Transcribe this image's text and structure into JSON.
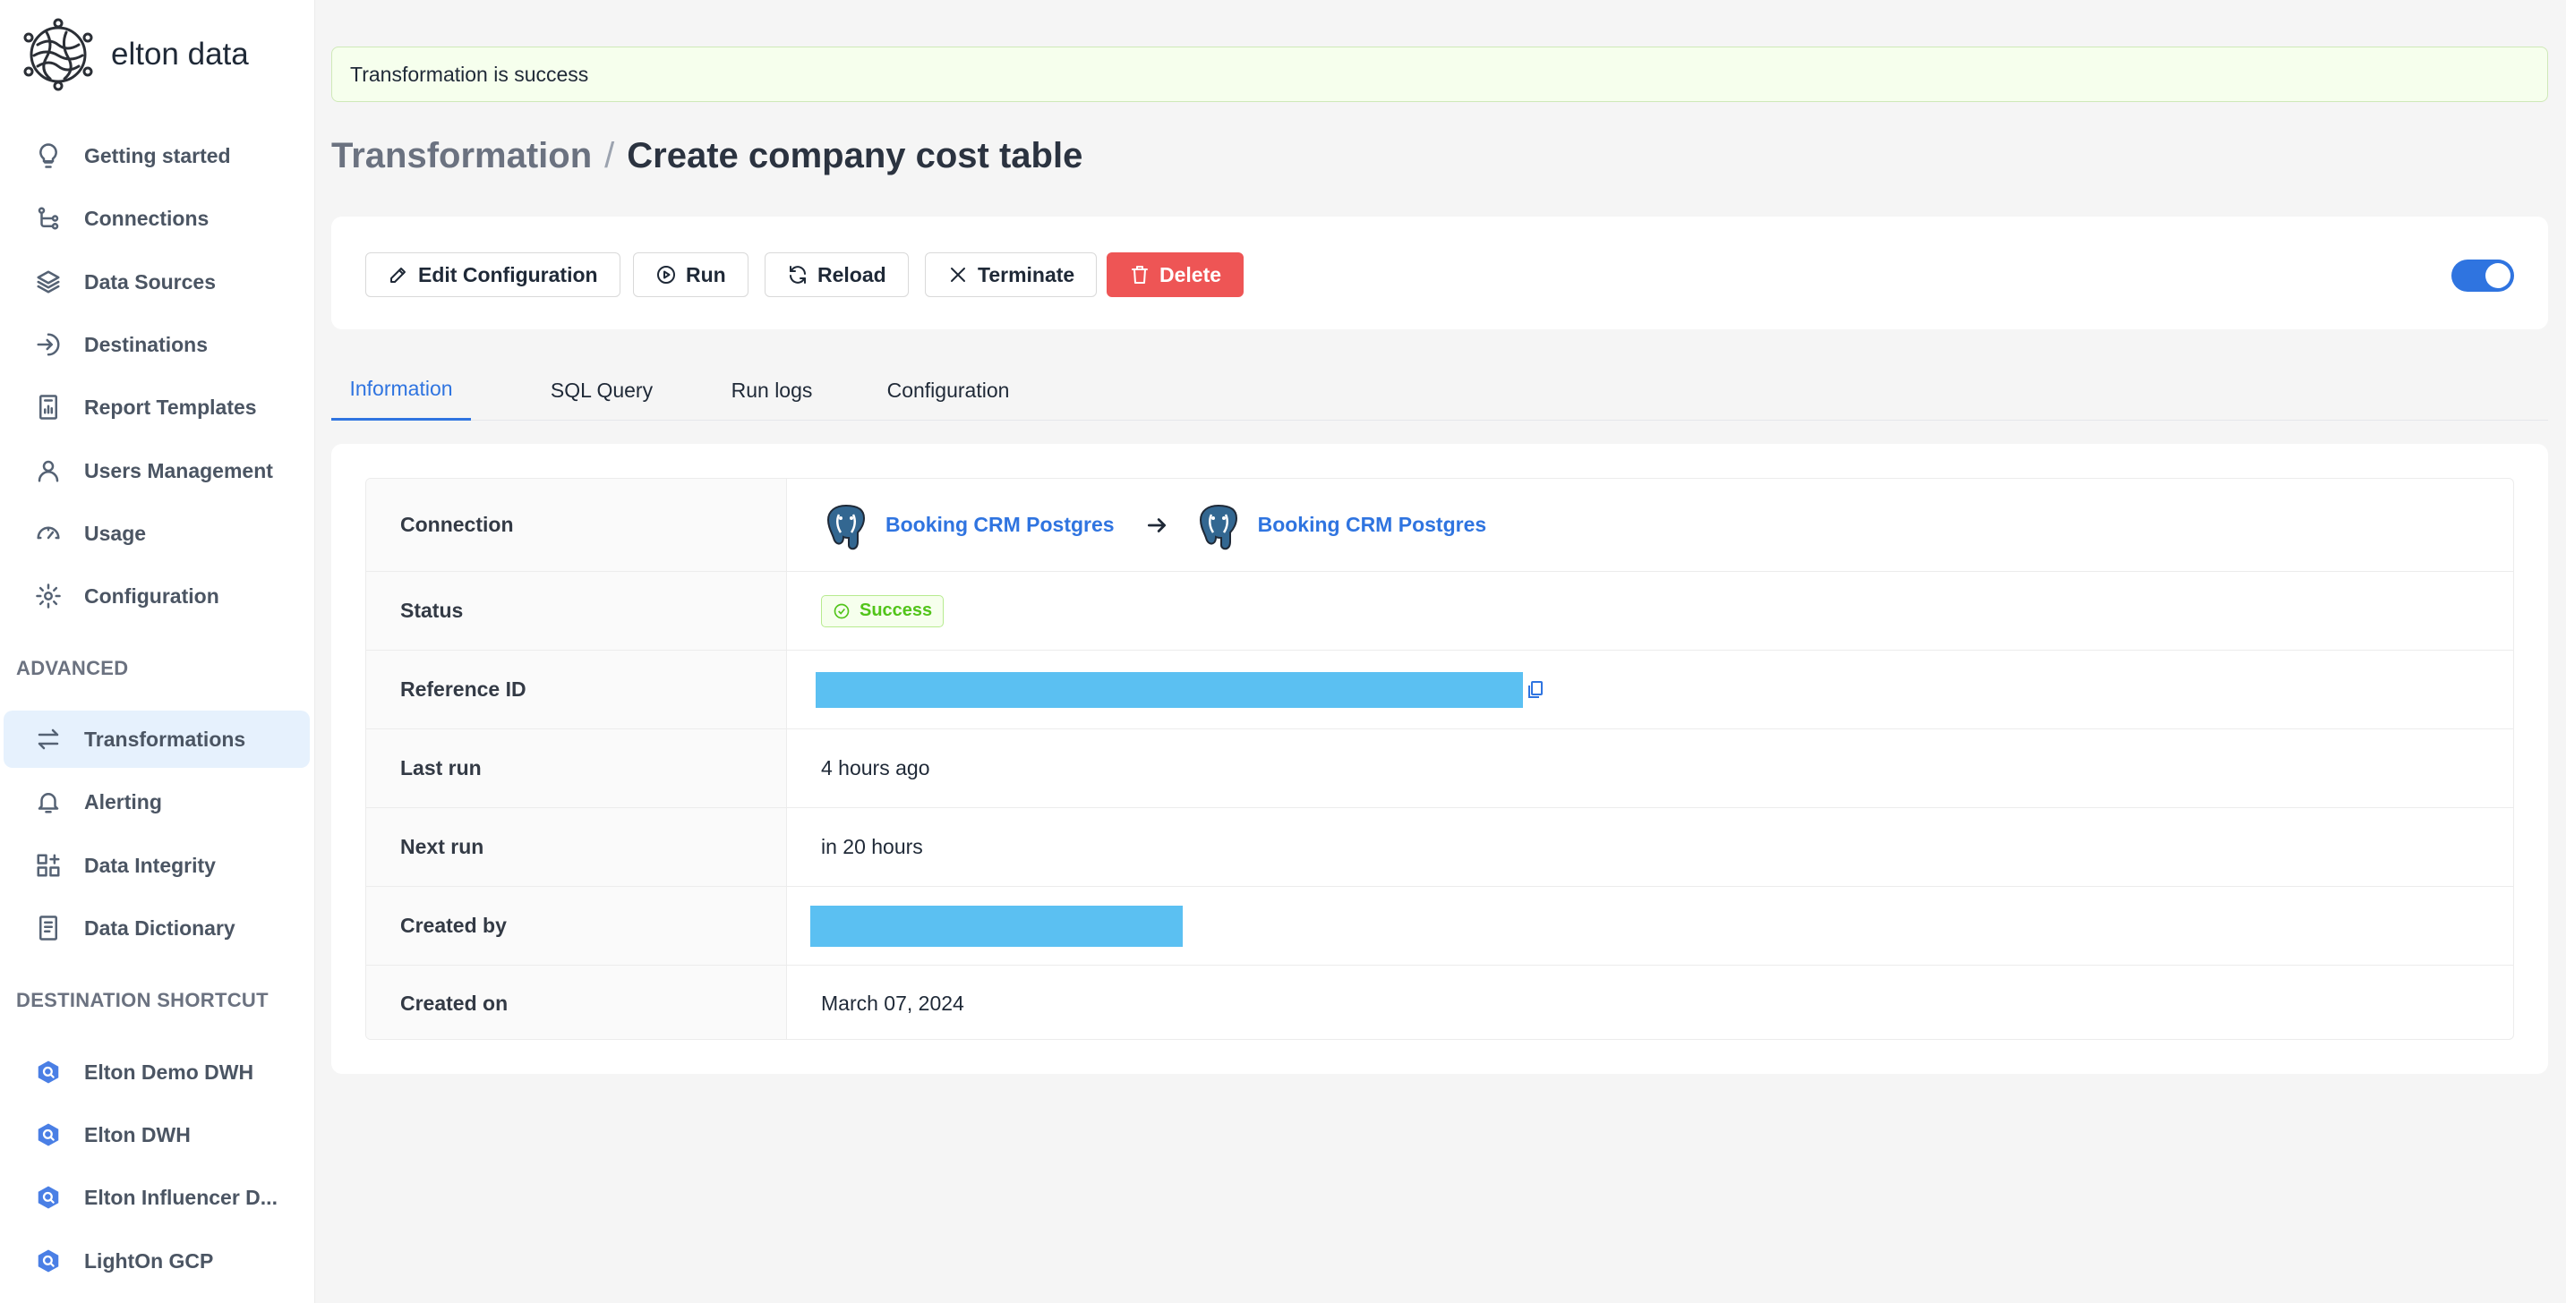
{
  "brand": {
    "name": "elton data"
  },
  "sidebar": {
    "items": [
      {
        "label": "Getting started",
        "icon": "lightbulb-icon"
      },
      {
        "label": "Connections",
        "icon": "connections-icon"
      },
      {
        "label": "Data Sources",
        "icon": "layers-icon"
      },
      {
        "label": "Destinations",
        "icon": "sign-in-icon"
      },
      {
        "label": "Report Templates",
        "icon": "report-icon"
      },
      {
        "label": "Users Management",
        "icon": "user-icon"
      },
      {
        "label": "Usage",
        "icon": "dashboard-icon"
      },
      {
        "label": "Configuration",
        "icon": "gear-icon"
      }
    ],
    "advanced_label": "ADVANCED",
    "advanced_items": [
      {
        "label": "Transformations",
        "icon": "swap-icon",
        "active": true
      },
      {
        "label": "Alerting",
        "icon": "bell-icon"
      },
      {
        "label": "Data Integrity",
        "icon": "app-add-icon"
      },
      {
        "label": "Data Dictionary",
        "icon": "book-icon"
      }
    ],
    "shortcut_label": "DESTINATION SHORTCUT",
    "shortcuts": [
      {
        "label": "Elton Demo DWH",
        "icon": "bigquery-icon"
      },
      {
        "label": "Elton DWH",
        "icon": "bigquery-icon"
      },
      {
        "label": "Elton Influencer D...",
        "icon": "bigquery-icon"
      },
      {
        "label": "LightOn GCP",
        "icon": "bigquery-icon"
      }
    ]
  },
  "alert": {
    "message": "Transformation is success"
  },
  "header": {
    "parent": "Transformation",
    "separator": "/",
    "title": "Create company cost table"
  },
  "toolbar": {
    "edit_label": "Edit Configuration",
    "run_label": "Run",
    "reload_label": "Reload",
    "terminate_label": "Terminate",
    "delete_label": "Delete",
    "enabled": true
  },
  "tabs": [
    {
      "label": "Information",
      "active": true
    },
    {
      "label": "SQL Query"
    },
    {
      "label": "Run logs"
    },
    {
      "label": "Configuration"
    }
  ],
  "info": {
    "connection_label": "Connection",
    "source_name": "Booking CRM Postgres",
    "destination_name": "Booking CRM Postgres",
    "status_label": "Status",
    "status_value": "Success",
    "reference_label": "Reference ID",
    "last_run_label": "Last run",
    "last_run_value": "4 hours ago",
    "next_run_label": "Next run",
    "next_run_value": "in 20 hours",
    "created_by_label": "Created by",
    "created_on_label": "Created on",
    "created_on_value": "March 07, 2024"
  },
  "colors": {
    "accent": "#2f74e0",
    "danger": "#ee5555",
    "success": "#52c41a",
    "redaction": "#5bc0f2"
  }
}
